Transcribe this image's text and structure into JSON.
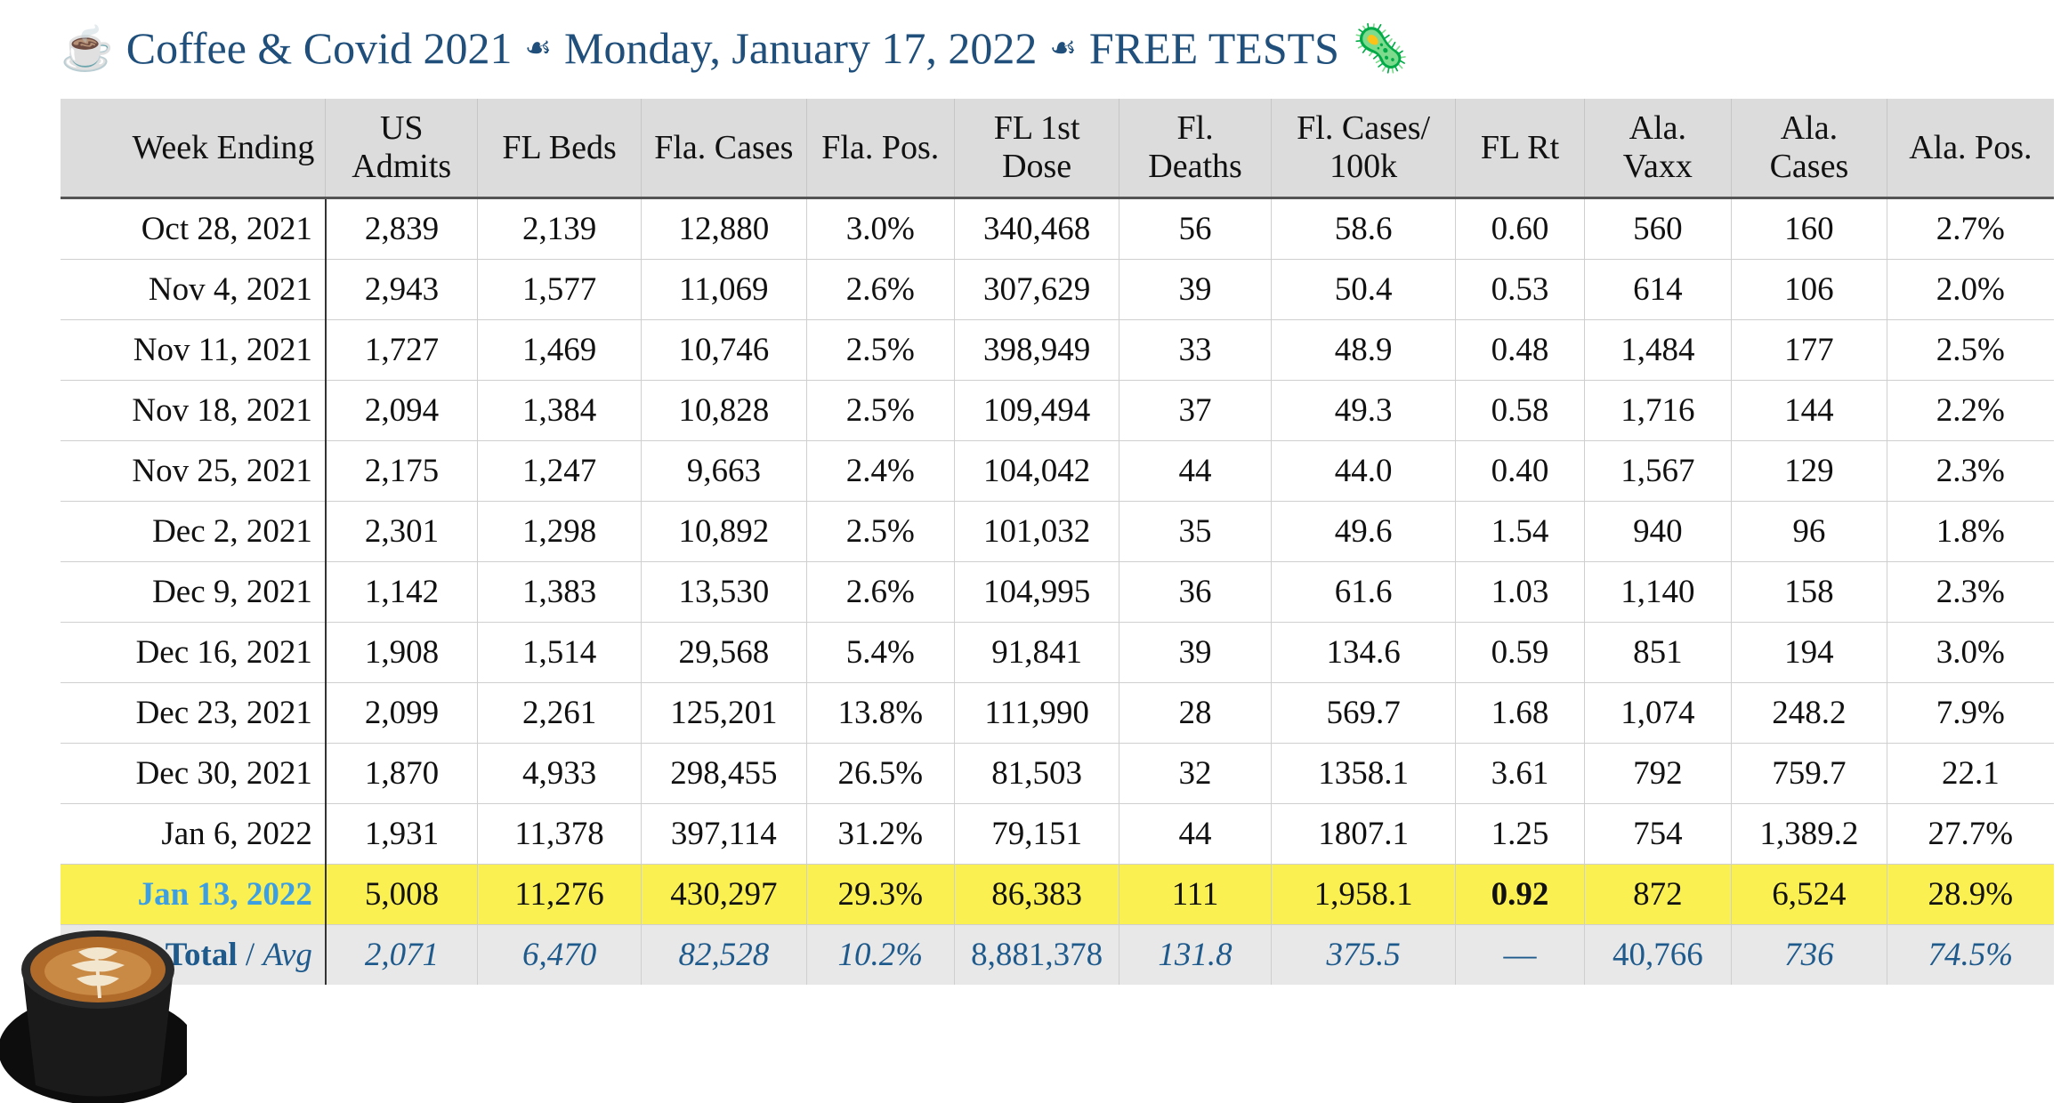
{
  "title": {
    "cup_icon": "☕",
    "part1": "Coffee & Covid 2021",
    "separator": "☙",
    "part2": "Monday, January 17, 2022",
    "part3": "FREE TESTS",
    "virus_icon": "🦠"
  },
  "table": {
    "headers": [
      [
        "Week Ending"
      ],
      [
        "US",
        "Admits"
      ],
      [
        "FL Beds"
      ],
      [
        "Fla. Cases"
      ],
      [
        "Fla. Pos."
      ],
      [
        "FL 1st",
        "Dose"
      ],
      [
        "Fl.",
        "Deaths"
      ],
      [
        "Fl. Cases/",
        "100k"
      ],
      [
        "FL Rt"
      ],
      [
        "Ala.",
        "Vaxx"
      ],
      [
        "Ala.",
        "Cases"
      ],
      [
        "Ala. Pos."
      ]
    ],
    "rows": [
      [
        "Oct 28, 2021",
        "2,839",
        "2,139",
        "12,880",
        "3.0%",
        "340,468",
        "56",
        "58.6",
        "0.60",
        "560",
        "160",
        "2.7%"
      ],
      [
        "Nov 4, 2021",
        "2,943",
        "1,577",
        "11,069",
        "2.6%",
        "307,629",
        "39",
        "50.4",
        "0.53",
        "614",
        "106",
        "2.0%"
      ],
      [
        "Nov 11, 2021",
        "1,727",
        "1,469",
        "10,746",
        "2.5%",
        "398,949",
        "33",
        "48.9",
        "0.48",
        "1,484",
        "177",
        "2.5%"
      ],
      [
        "Nov 18, 2021",
        "2,094",
        "1,384",
        "10,828",
        "2.5%",
        "109,494",
        "37",
        "49.3",
        "0.58",
        "1,716",
        "144",
        "2.2%"
      ],
      [
        "Nov 25, 2021",
        "2,175",
        "1,247",
        "9,663",
        "2.4%",
        "104,042",
        "44",
        "44.0",
        "0.40",
        "1,567",
        "129",
        "2.3%"
      ],
      [
        "Dec 2, 2021",
        "2,301",
        "1,298",
        "10,892",
        "2.5%",
        "101,032",
        "35",
        "49.6",
        "1.54",
        "940",
        "96",
        "1.8%"
      ],
      [
        "Dec 9, 2021",
        "1,142",
        "1,383",
        "13,530",
        "2.6%",
        "104,995",
        "36",
        "61.6",
        "1.03",
        "1,140",
        "158",
        "2.3%"
      ],
      [
        "Dec 16, 2021",
        "1,908",
        "1,514",
        "29,568",
        "5.4%",
        "91,841",
        "39",
        "134.6",
        "0.59",
        "851",
        "194",
        "3.0%"
      ],
      [
        "Dec 23, 2021",
        "2,099",
        "2,261",
        "125,201",
        "13.8%",
        "111,990",
        "28",
        "569.7",
        "1.68",
        "1,074",
        "248.2",
        "7.9%"
      ],
      [
        "Dec 30, 2021",
        "1,870",
        "4,933",
        "298,455",
        "26.5%",
        "81,503",
        "32",
        "1358.1",
        "3.61",
        "792",
        "759.7",
        "22.1"
      ],
      [
        "Jan 6, 2022",
        "1,931",
        "11,378",
        "397,114",
        "31.2%",
        "79,151",
        "44",
        "1807.1",
        "1.25",
        "754",
        "1,389.2",
        "27.7%"
      ]
    ],
    "highlight_row": [
      "Jan 13, 2022",
      "5,008",
      "11,276",
      "430,297",
      "29.3%",
      "86,383",
      "111",
      "1,958.1",
      "0.92",
      "872",
      "6,524",
      "28.9%"
    ],
    "total_row": {
      "label_bold": "Total",
      "label_sep": " / ",
      "label_italic": "Avg",
      "values": [
        "2,071",
        "6,470",
        "82,528",
        "10.2%",
        "8,881,378",
        "131.8",
        "375.5",
        "—",
        "40,766",
        "736",
        "74.5%"
      ]
    }
  },
  "colors": {
    "title": "#1f4f7a",
    "highlight_bg": "#fbf052",
    "highlight_week": "#3d9fe3",
    "header_bg": "#dcdcdc",
    "total_bg": "#e8e8e8",
    "total_text": "#1f5a8c"
  }
}
